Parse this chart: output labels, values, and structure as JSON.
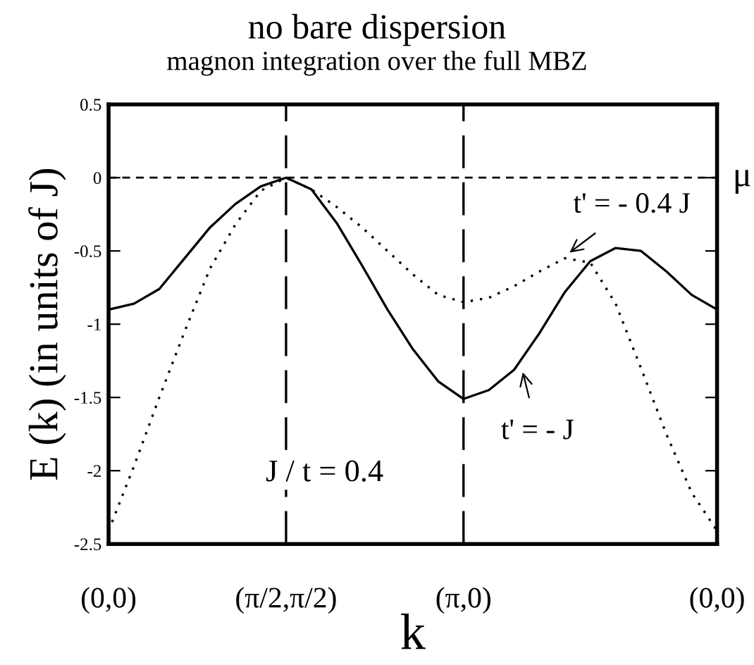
{
  "chart_data": {
    "type": "line",
    "title": "no bare dispersion",
    "subtitle": "magnon integration over the full MBZ",
    "xlabel": "k",
    "ylabel": "E (k) (in units of J)",
    "categories": [
      "(0,0)",
      null,
      null,
      null,
      null,
      null,
      null,
      "(π/2,π/2)",
      null,
      null,
      null,
      null,
      null,
      null,
      "(π,0)",
      null,
      null,
      null,
      null,
      null,
      null,
      null,
      null,
      null,
      "(0,0)"
    ],
    "ylim": [
      -2.5,
      0.5
    ],
    "yticks": [
      0.5,
      0,
      -0.5,
      -1,
      -1.5,
      -2,
      -2.5
    ],
    "grid": false,
    "legend": false,
    "series": [
      {
        "color": "#000000",
        "line_style": "solid",
        "values": [
          -0.9,
          -0.86,
          -0.76,
          -0.55,
          -0.34,
          -0.18,
          -0.06,
          0,
          -0.08,
          -0.31,
          -0.6,
          -0.9,
          -1.17,
          -1.39,
          -1.51,
          -1.45,
          -1.31,
          -1.06,
          -0.78,
          -0.57,
          -0.48,
          -0.5,
          -0.64,
          -0.8,
          -0.9
        ]
      },
      {
        "color": "#000000",
        "line_style": "dotted",
        "values": [
          -2.41,
          -1.97,
          -1.5,
          -1.05,
          -0.62,
          -0.32,
          -0.09,
          0,
          -0.08,
          -0.2,
          -0.34,
          -0.5,
          -0.66,
          -0.8,
          -0.85,
          -0.82,
          -0.74,
          -0.64,
          -0.55,
          -0.58,
          -0.86,
          -1.3,
          -1.75,
          -2.15,
          -2.41
        ]
      }
    ],
    "ref_lines": [
      {
        "axis": "y",
        "value": 0,
        "label": "μ",
        "line_style": "dashed"
      },
      {
        "axis": "x",
        "value": "(π/2,π/2)",
        "label": null,
        "line_style": "longdash"
      },
      {
        "axis": "x",
        "value": "(π,0)",
        "label": null,
        "line_style": "longdash"
      }
    ],
    "annotations": [
      "t' = - 0.4 J",
      "t' = - J",
      "J / t = 0.4"
    ]
  }
}
